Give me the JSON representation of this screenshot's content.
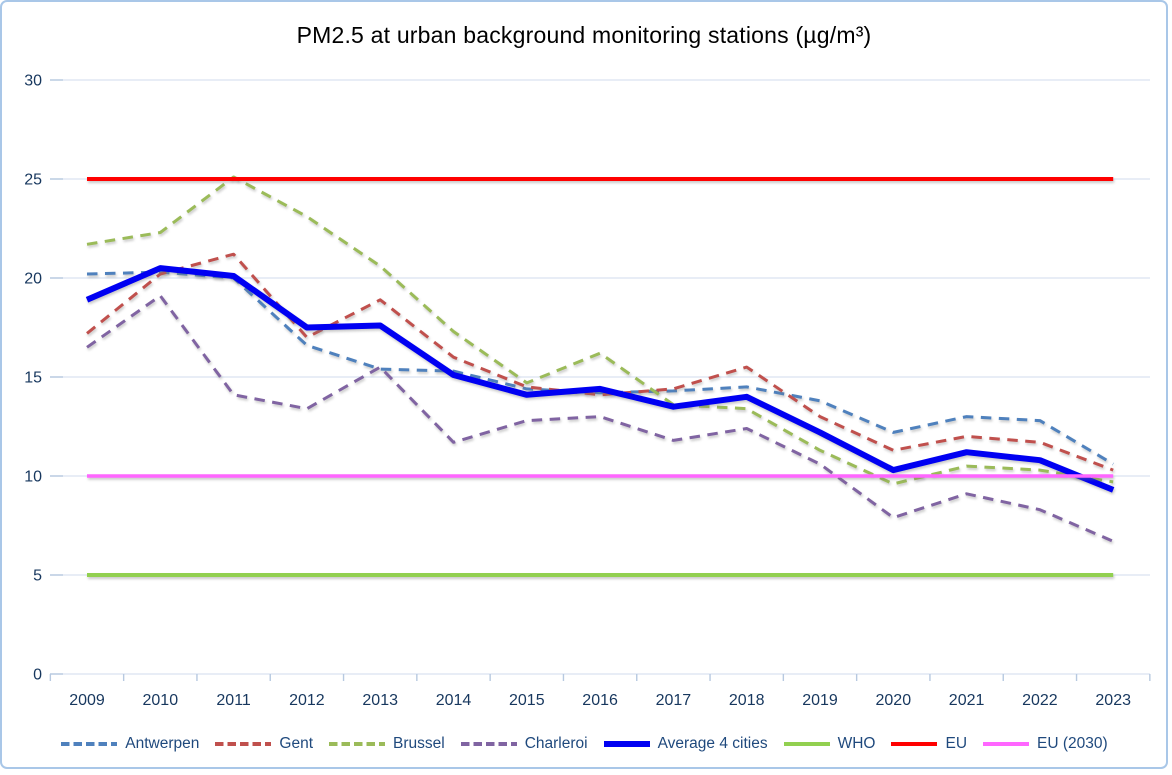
{
  "title": "PM2.5 at urban background monitoring stations (µg/m³)",
  "chart_data": {
    "type": "line",
    "title": "PM2.5 at urban background monitoring stations (µg/m³)",
    "x": [
      2009,
      2010,
      2011,
      2012,
      2013,
      2014,
      2015,
      2016,
      2017,
      2018,
      2019,
      2020,
      2021,
      2022,
      2023
    ],
    "series": [
      {
        "name": "Antwerpen",
        "color": "#4f81bd",
        "style": "dashed",
        "width": 3,
        "values": [
          20.2,
          20.3,
          20.0,
          16.6,
          15.4,
          15.3,
          14.4,
          14.2,
          14.3,
          14.5,
          13.8,
          12.2,
          13.0,
          12.8,
          10.6
        ]
      },
      {
        "name": "Gent",
        "color": "#c0504d",
        "style": "dashed",
        "width": 3,
        "values": [
          17.2,
          20.2,
          21.2,
          17.0,
          18.9,
          16.0,
          14.5,
          14.1,
          14.4,
          15.5,
          13.0,
          11.3,
          12.0,
          11.7,
          10.3
        ]
      },
      {
        "name": "Brussel",
        "color": "#9bbb59",
        "style": "dashed",
        "width": 3,
        "values": [
          21.7,
          22.3,
          25.1,
          23.1,
          20.6,
          17.3,
          14.7,
          16.2,
          13.6,
          13.4,
          11.3,
          9.6,
          10.5,
          10.3,
          9.7
        ]
      },
      {
        "name": "Charleroi",
        "color": "#8064a2",
        "style": "dashed",
        "width": 3,
        "values": [
          16.5,
          19.1,
          14.1,
          13.4,
          15.5,
          11.7,
          12.8,
          13.0,
          11.8,
          12.4,
          10.6,
          7.9,
          9.1,
          8.3,
          6.7
        ]
      },
      {
        "name": "Average 4 cities",
        "color": "#0000f2",
        "style": "solid",
        "width": 6,
        "values": [
          18.9,
          20.5,
          20.1,
          17.5,
          17.6,
          15.1,
          14.1,
          14.4,
          13.5,
          14.0,
          12.2,
          10.3,
          11.2,
          10.8,
          9.3
        ]
      },
      {
        "name": "WHO",
        "color": "#92d050",
        "style": "solid",
        "width": 4,
        "constant": 5,
        "values": [
          5,
          5,
          5,
          5,
          5,
          5,
          5,
          5,
          5,
          5,
          5,
          5,
          5,
          5,
          5
        ]
      },
      {
        "name": "EU",
        "color": "#ff0000",
        "style": "solid",
        "width": 4,
        "constant": 25,
        "values": [
          25,
          25,
          25,
          25,
          25,
          25,
          25,
          25,
          25,
          25,
          25,
          25,
          25,
          25,
          25
        ]
      },
      {
        "name": "EU (2030)",
        "color": "#ff66ff",
        "style": "solid",
        "width": 3.5,
        "constant": 10,
        "values": [
          10,
          10,
          10,
          10,
          10,
          10,
          10,
          10,
          10,
          10,
          10,
          10,
          10,
          10,
          10
        ]
      }
    ],
    "xlabel": "",
    "ylabel": "",
    "ylim": [
      0,
      30
    ],
    "yticks": [
      0,
      5,
      10,
      15,
      20,
      25,
      30
    ],
    "grid": true,
    "legend_position": "bottom"
  },
  "colors": {
    "axis_text": "#17375e",
    "legend_text": "#1f497d",
    "gridline": "#d9e2f1",
    "axis_line": "#c2d4e9",
    "tick_mark": "#b7c9e0",
    "frame_border": "#a9c7e8",
    "title_text": "#000000",
    "background": "#ffffff"
  }
}
